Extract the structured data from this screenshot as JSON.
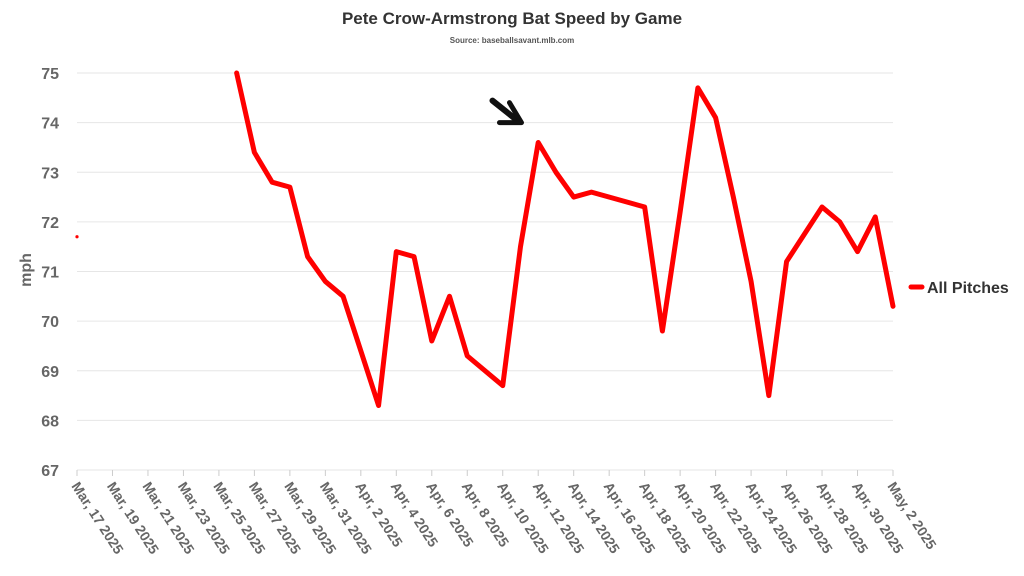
{
  "chart_data": {
    "type": "line",
    "title": "Pete Crow-Armstrong Bat Speed by Game",
    "subtitle": "Source: baseballsavant.mlb.com",
    "ylabel": "mph",
    "xlabel": "",
    "ylim": [
      67,
      75
    ],
    "yticks": [
      67,
      68,
      69,
      70,
      71,
      72,
      73,
      74,
      75
    ],
    "grid": true,
    "legend_position": "right",
    "categories": [
      "Mar, 17 2025",
      "Mar, 19 2025",
      "Mar, 21 2025",
      "Mar, 23 2025",
      "Mar, 25 2025",
      "Mar, 27 2025",
      "Mar, 29 2025",
      "Mar, 31 2025",
      "Apr, 2 2025",
      "Apr, 4 2025",
      "Apr, 6 2025",
      "Apr, 8 2025",
      "Apr, 10 2025",
      "Apr, 12 2025",
      "Apr, 14 2025",
      "Apr, 16 2025",
      "Apr, 18 2025",
      "Apr, 20 2025",
      "Apr, 22 2025",
      "Apr, 24 2025",
      "Apr, 26 2025",
      "Apr, 28 2025",
      "Apr, 30 2025",
      "May, 2 2025"
    ],
    "series": [
      {
        "name": "All Pitches",
        "color": "#ff0000",
        "points": [
          {
            "x": "2025-03-17",
            "y": 71.7
          },
          {
            "x": "2025-03-26",
            "y": 75.0
          },
          {
            "x": "2025-03-27",
            "y": 73.4
          },
          {
            "x": "2025-03-28",
            "y": 72.8
          },
          {
            "x": "2025-03-29",
            "y": 72.7
          },
          {
            "x": "2025-03-30",
            "y": 71.3
          },
          {
            "x": "2025-03-31",
            "y": 70.8
          },
          {
            "x": "2025-04-01",
            "y": 70.5
          },
          {
            "x": "2025-04-02",
            "y": 69.4
          },
          {
            "x": "2025-04-03",
            "y": 68.3
          },
          {
            "x": "2025-04-04",
            "y": 71.4
          },
          {
            "x": "2025-04-05",
            "y": 71.3
          },
          {
            "x": "2025-04-06",
            "y": 69.6
          },
          {
            "x": "2025-04-07",
            "y": 70.5
          },
          {
            "x": "2025-04-08",
            "y": 69.3
          },
          {
            "x": "2025-04-10",
            "y": 68.7
          },
          {
            "x": "2025-04-11",
            "y": 71.5
          },
          {
            "x": "2025-04-12",
            "y": 73.6
          },
          {
            "x": "2025-04-13",
            "y": 73.0
          },
          {
            "x": "2025-04-14",
            "y": 72.5
          },
          {
            "x": "2025-04-15",
            "y": 72.6
          },
          {
            "x": "2025-04-18",
            "y": 72.3
          },
          {
            "x": "2025-04-19",
            "y": 69.8
          },
          {
            "x": "2025-04-20",
            "y": 72.2
          },
          {
            "x": "2025-04-21",
            "y": 74.7
          },
          {
            "x": "2025-04-22",
            "y": 74.1
          },
          {
            "x": "2025-04-23",
            "y": 72.5
          },
          {
            "x": "2025-04-24",
            "y": 70.8
          },
          {
            "x": "2025-04-25",
            "y": 68.5
          },
          {
            "x": "2025-04-26",
            "y": 71.2
          },
          {
            "x": "2025-04-28",
            "y": 72.3
          },
          {
            "x": "2025-04-29",
            "y": 72.0
          },
          {
            "x": "2025-04-30",
            "y": 71.4
          },
          {
            "x": "2025-05-01",
            "y": 72.1
          },
          {
            "x": "2025-05-02",
            "y": 70.3
          }
        ]
      }
    ],
    "annotations": [
      {
        "type": "arrow",
        "x": "2025-04-11",
        "y": 74.0,
        "color": "#111111"
      }
    ]
  }
}
